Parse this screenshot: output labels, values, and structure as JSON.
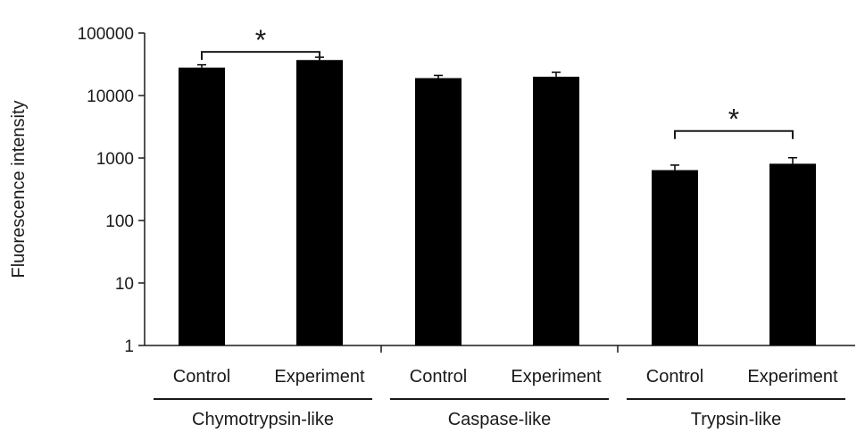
{
  "chart_data": {
    "type": "bar",
    "ylabel": "Fluorescence intensity",
    "yscale": "log",
    "ylim": [
      1,
      100000
    ],
    "yticks": [
      "1",
      "10",
      "100",
      "1000",
      "10000",
      "100000"
    ],
    "grid": false,
    "legend": "none",
    "bar_color": "#000000",
    "groups": [
      {
        "name": "Chymotrypsin-like",
        "bars": [
          {
            "label": "Control",
            "value": 28000,
            "error": 3000
          },
          {
            "label": "Experiment",
            "value": 37000,
            "error": 4000
          }
        ],
        "significance": "*"
      },
      {
        "name": "Caspase-like",
        "bars": [
          {
            "label": "Control",
            "value": 19000,
            "error": 2000
          },
          {
            "label": "Experiment",
            "value": 20000,
            "error": 3500
          }
        ],
        "significance": ""
      },
      {
        "name": "Trypsin-like",
        "bars": [
          {
            "label": "Control",
            "value": 640,
            "error": 130
          },
          {
            "label": "Experiment",
            "value": 810,
            "error": 200
          }
        ],
        "significance": "*"
      }
    ]
  }
}
